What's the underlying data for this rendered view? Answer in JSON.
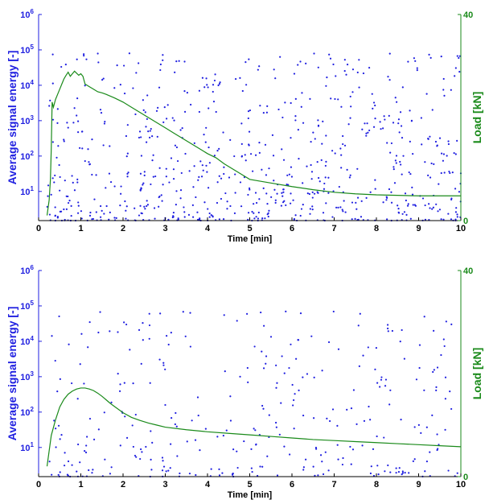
{
  "colors": {
    "scatter": "#1f1fe0",
    "load": "#1a8a1a",
    "axis": "#000000",
    "left_axis": "#1f1fe0",
    "right_axis": "#1a8a1a"
  },
  "chart_data": [
    {
      "type": "scatter",
      "panel": "top",
      "xlabel": "Time [min]",
      "ylabel": "Average signal energy [-]",
      "y2label": "Load [kN]",
      "xlim": [
        0,
        10
      ],
      "ylim": [
        1.5,
        1000000
      ],
      "yscale": "log",
      "y2lim": [
        0,
        40
      ],
      "grid": false,
      "x_ticks": [
        "0",
        "1",
        "2",
        "3",
        "4",
        "5",
        "6",
        "7",
        "8",
        "9",
        "10"
      ],
      "y_ticks": [
        {
          "base": "10",
          "exp": "1"
        },
        {
          "base": "10",
          "exp": "2"
        },
        {
          "base": "10",
          "exp": "3"
        },
        {
          "base": "10",
          "exp": "4"
        },
        {
          "base": "10",
          "exp": "5"
        },
        {
          "base": "10",
          "exp": "6"
        }
      ],
      "y2_ticks": [
        "0",
        "40"
      ],
      "scatter_count": 720,
      "scatter_seed": 11,
      "scatter_x_range": [
        0.2,
        10
      ],
      "scatter_y_range": [
        1.5,
        80000
      ],
      "series": [
        {
          "kind": "line",
          "x": [
            0.2,
            0.25,
            0.28,
            0.3,
            0.32,
            0.35,
            0.4,
            0.45,
            0.5,
            0.55,
            0.6,
            0.65,
            0.7,
            0.75,
            0.8,
            0.85,
            0.9,
            0.95,
            1.0,
            1.05,
            1.1,
            1.2,
            1.3,
            1.4,
            1.5,
            1.6,
            1.8,
            2.0,
            2.2,
            2.4,
            2.6,
            2.8,
            3.0,
            3.2,
            3.4,
            3.6,
            3.8,
            4.0,
            4.2,
            4.4,
            4.6,
            4.8,
            5.0,
            5.5,
            6.0,
            6.5,
            7.0,
            7.5,
            8.0,
            8.5,
            9.0,
            9.5,
            10.0
          ],
          "y": [
            1,
            4,
            8,
            14,
            23,
            22,
            23.5,
            24.5,
            25.5,
            26.5,
            27.5,
            28.2,
            28.8,
            28.0,
            28.5,
            29.0,
            28.6,
            28.2,
            28.5,
            28.0,
            26.5,
            26.0,
            25.5,
            25.0,
            24.8,
            24.5,
            23.8,
            23.0,
            22.0,
            21.0,
            20.0,
            19.0,
            18.0,
            17.0,
            16.0,
            15.0,
            14.0,
            13.0,
            12.2,
            11.0,
            10.0,
            9.0,
            8.0,
            7.3,
            6.6,
            6.0,
            5.5,
            5.2,
            5.0,
            4.9,
            4.8,
            4.8,
            4.8
          ]
        }
      ]
    },
    {
      "type": "scatter",
      "panel": "bottom",
      "xlabel": "Time [min]",
      "ylabel": "Average signal energy [-]",
      "y2label": "Load [kN]",
      "xlim": [
        0,
        10
      ],
      "ylim": [
        1.5,
        1000000
      ],
      "yscale": "log",
      "y2lim": [
        0,
        40
      ],
      "grid": false,
      "x_ticks": [
        "0",
        "1",
        "2",
        "3",
        "4",
        "5",
        "6",
        "7",
        "8",
        "9",
        "10"
      ],
      "y_ticks": [
        {
          "base": "10",
          "exp": "1"
        },
        {
          "base": "10",
          "exp": "2"
        },
        {
          "base": "10",
          "exp": "3"
        },
        {
          "base": "10",
          "exp": "4"
        },
        {
          "base": "10",
          "exp": "5"
        },
        {
          "base": "10",
          "exp": "6"
        }
      ],
      "y2_ticks": [
        "0",
        "40"
      ],
      "scatter_count": 330,
      "scatter_seed": 29,
      "scatter_x_range": [
        0.2,
        10
      ],
      "scatter_y_range": [
        1.5,
        70000
      ],
      "series": [
        {
          "kind": "line",
          "x": [
            0.2,
            0.3,
            0.4,
            0.5,
            0.6,
            0.7,
            0.8,
            0.9,
            1.0,
            1.1,
            1.2,
            1.3,
            1.4,
            1.5,
            1.6,
            1.7,
            1.8,
            2.0,
            2.2,
            2.4,
            2.6,
            2.8,
            3.0,
            3.5,
            4.0,
            4.5,
            5.0,
            5.5,
            6.0,
            6.5,
            7.0,
            7.5,
            8.0,
            8.5,
            9.0,
            9.5,
            10.0
          ],
          "y": [
            2,
            8,
            11,
            13.5,
            15,
            16,
            16.6,
            17,
            17.2,
            17.2,
            17.0,
            16.7,
            16.2,
            15.6,
            14.9,
            14.2,
            13.6,
            12.4,
            11.5,
            10.9,
            10.4,
            10.0,
            9.6,
            9.1,
            8.7,
            8.4,
            8.1,
            7.8,
            7.5,
            7.2,
            7.0,
            6.8,
            6.6,
            6.4,
            6.2,
            6.0,
            5.8
          ]
        }
      ]
    }
  ]
}
